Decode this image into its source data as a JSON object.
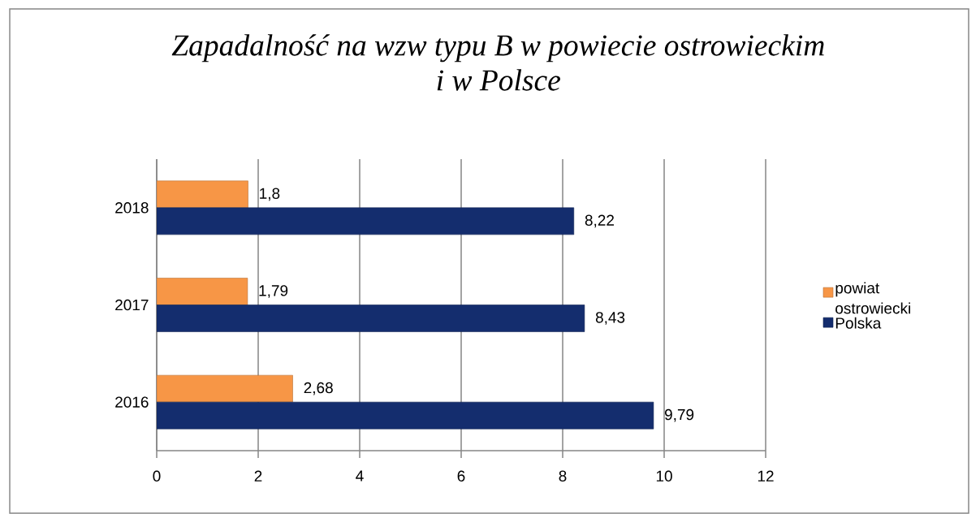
{
  "chart_data": {
    "type": "bar",
    "orientation": "horizontal",
    "title": "Zapadalność na wzw typu B w powiecie ostrowieckim i w Polsce",
    "categories": [
      "2018",
      "2017",
      "2016"
    ],
    "series": [
      {
        "name": "powiat ostrowiecki",
        "color": "#f79646",
        "values": [
          1.8,
          1.79,
          2.68
        ],
        "value_labels": [
          "1,8",
          "1,79",
          "2,68"
        ]
      },
      {
        "name": "Polska",
        "color": "#142d6e",
        "values": [
          8.22,
          8.43,
          9.79
        ],
        "value_labels": [
          "8,22",
          "8,43",
          "9,79"
        ]
      }
    ],
    "xlim": [
      0,
      12
    ],
    "xticks": [
      0,
      2,
      4,
      6,
      8,
      10,
      12
    ],
    "grid": "x",
    "legend": "right"
  }
}
